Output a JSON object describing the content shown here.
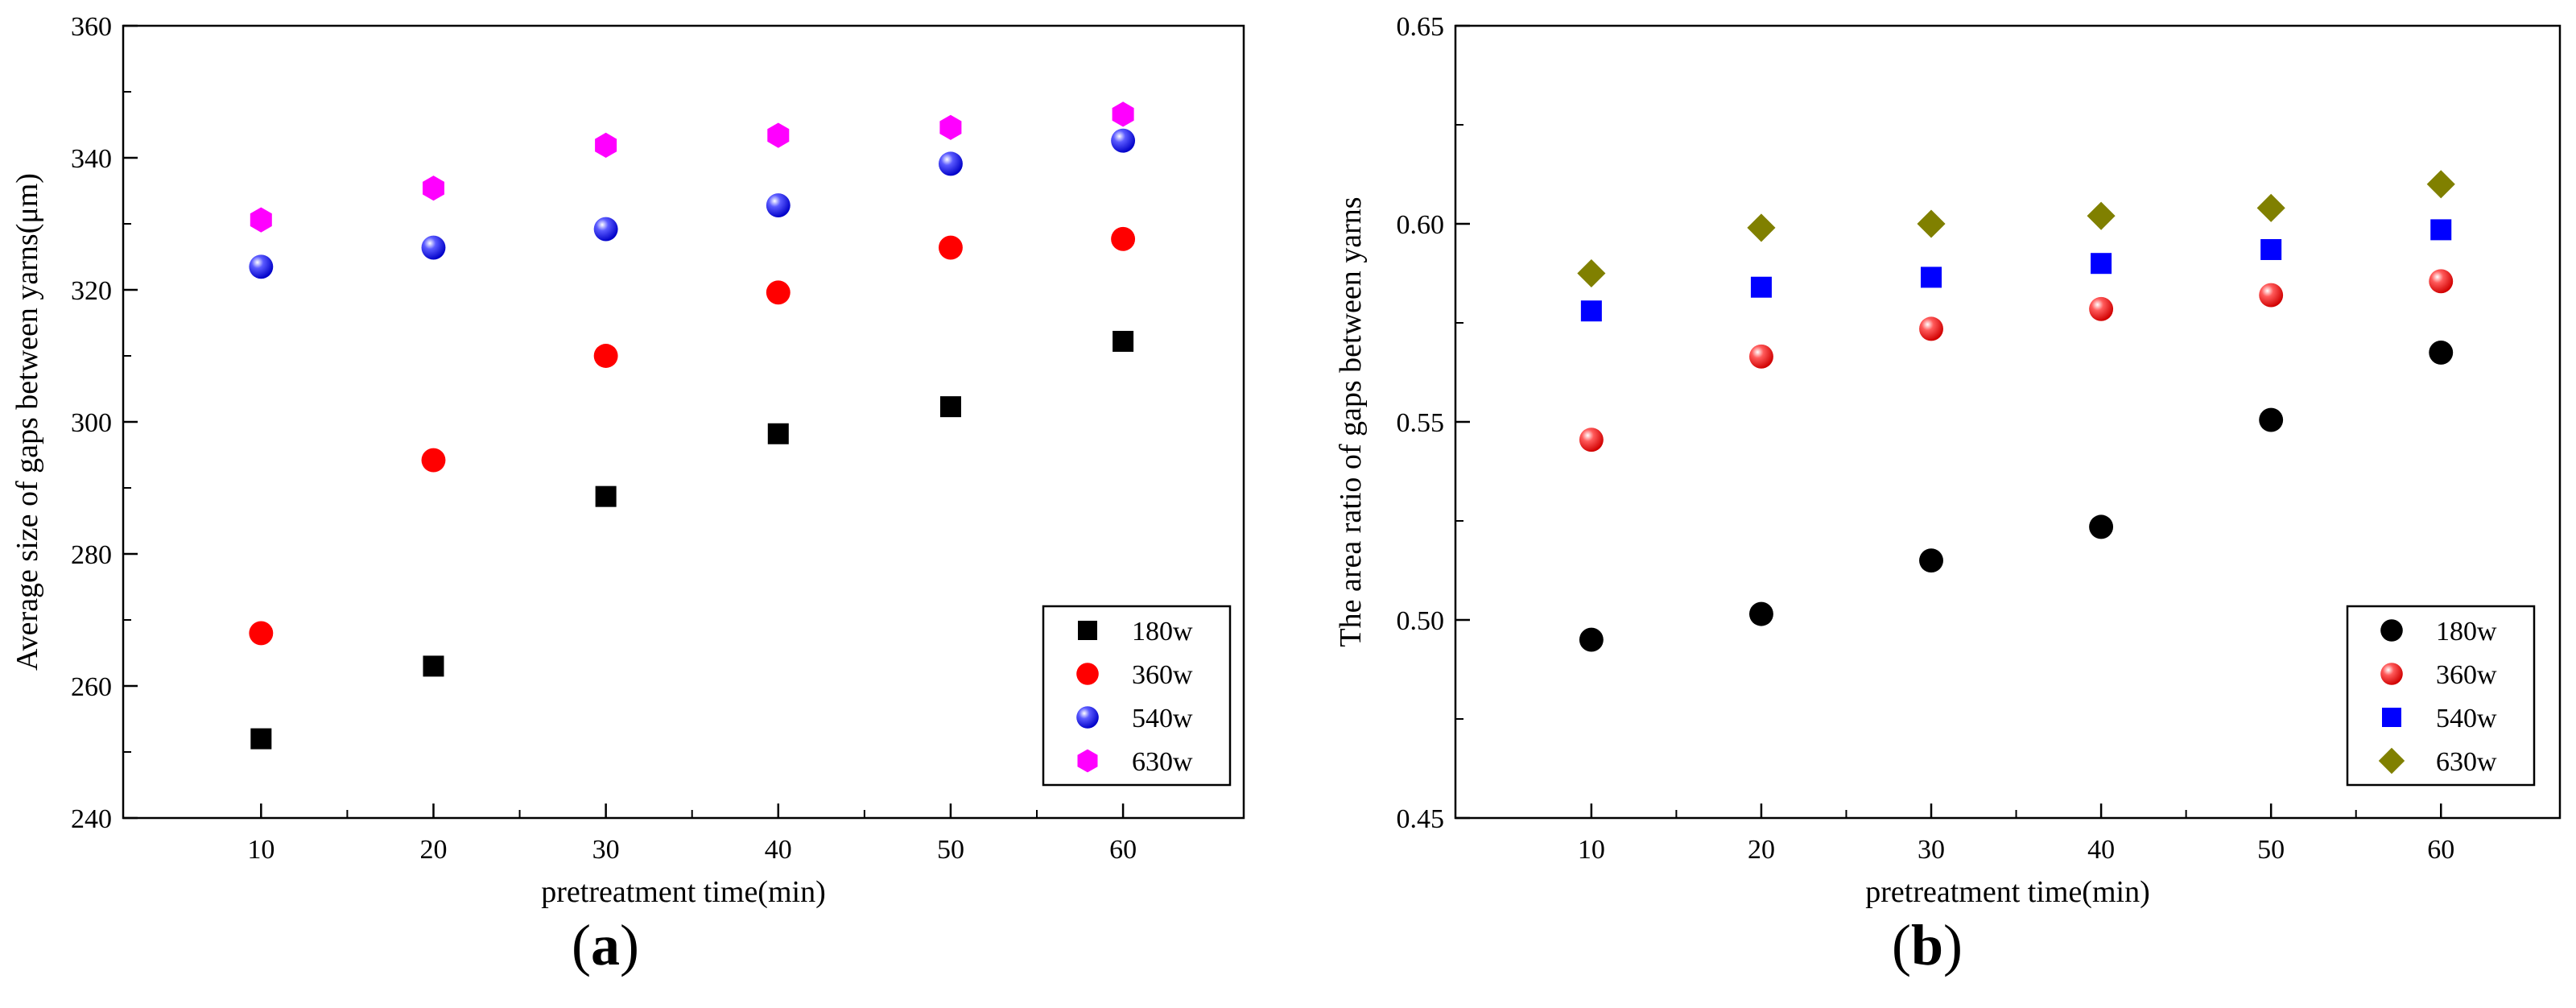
{
  "chart_data": [
    {
      "type": "scatter",
      "panel": "a",
      "title": "",
      "xlabel": "pretreatment time(min)",
      "ylabel": "Average size of gaps between yarns(μm)",
      "x": [
        10,
        20,
        30,
        40,
        50,
        60
      ],
      "xlim": [
        2,
        67
      ],
      "ylim": [
        240,
        360
      ],
      "xticks": [
        "10",
        "20",
        "30",
        "40",
        "50",
        "60"
      ],
      "yticks": [
        "240",
        "260",
        "280",
        "300",
        "320",
        "340",
        "360"
      ],
      "legend_position": "bottom-right",
      "series": [
        {
          "name": "180w",
          "marker": "square",
          "color": "#000000",
          "values": [
            252,
            263,
            288.7,
            298.2,
            302.3,
            312.2
          ]
        },
        {
          "name": "360w",
          "marker": "circle",
          "color": "#ff0000",
          "values": [
            268,
            294.2,
            310,
            319.6,
            326.4,
            327.7
          ]
        },
        {
          "name": "540w",
          "marker": "sphere",
          "color": "#0000ff",
          "values": [
            323.5,
            326.4,
            329.2,
            332.8,
            339.1,
            342.6
          ]
        },
        {
          "name": "630w",
          "marker": "hexagon",
          "color": "#ff00ff",
          "values": [
            330.6,
            335.4,
            341.9,
            343.4,
            344.6,
            346.6
          ]
        }
      ],
      "panel_label": {
        "open": "(",
        "letter": "a",
        "close": ")"
      }
    },
    {
      "type": "scatter",
      "panel": "b",
      "title": "",
      "xlabel": "pretreatment time(min)",
      "ylabel": "The area ratio of gaps between yarns",
      "x": [
        10,
        20,
        30,
        40,
        50,
        60
      ],
      "xlim": [
        2,
        67
      ],
      "ylim": [
        0.45,
        0.65
      ],
      "xticks": [
        "10",
        "20",
        "30",
        "40",
        "50",
        "60"
      ],
      "yticks": [
        "0.45",
        "0.50",
        "0.55",
        "0.60",
        "0.65"
      ],
      "legend_position": "bottom-right",
      "series": [
        {
          "name": "180w",
          "marker": "circle",
          "color": "#000000",
          "values": [
            0.495,
            0.5015,
            0.515,
            0.5235,
            0.5505,
            0.5675
          ]
        },
        {
          "name": "360w",
          "marker": "sphere",
          "color": "#ff0000",
          "values": [
            0.5455,
            0.5665,
            0.5735,
            0.5785,
            0.582,
            0.5855
          ]
        },
        {
          "name": "540w",
          "marker": "square",
          "color": "#0000ff",
          "values": [
            0.578,
            0.584,
            0.5865,
            0.59,
            0.5935,
            0.5985
          ]
        },
        {
          "name": "630w",
          "marker": "diamond",
          "color": "#808000",
          "values": [
            0.5875,
            0.599,
            0.6,
            0.602,
            0.604,
            0.61
          ]
        }
      ],
      "panel_label": {
        "open": "(",
        "letter": "b",
        "close": ")"
      }
    }
  ]
}
